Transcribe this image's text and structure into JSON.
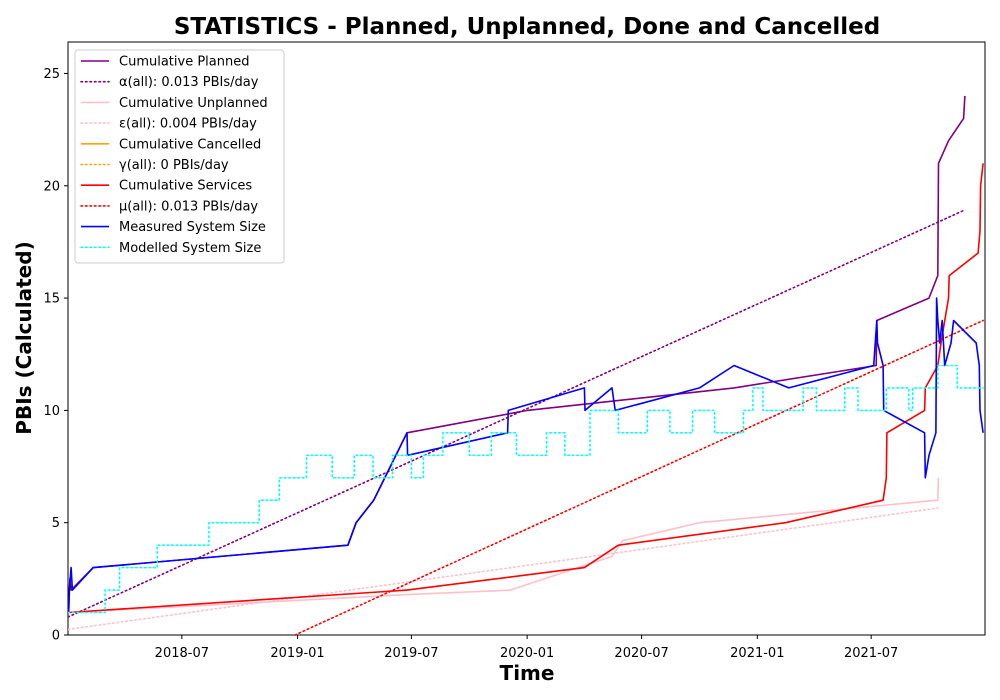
{
  "chart_data": {
    "type": "line",
    "title": "STATISTICS - Planned, Unplanned, Done  and Cancelled",
    "xlabel": "Time",
    "ylabel": "PBIs (Calculated)",
    "x_range": [
      "2018-01-01",
      "2021-12-29"
    ],
    "ylim": [
      0,
      26.4
    ],
    "x_ticks": [
      "2018-07",
      "2019-01",
      "2019-07",
      "2020-01",
      "2020-07",
      "2021-01",
      "2021-07"
    ],
    "y_ticks": [
      0,
      5,
      10,
      15,
      20,
      25
    ],
    "grid": false,
    "legend_position": "upper-left",
    "series": [
      {
        "name": "Cumulative Planned",
        "color": "#800080",
        "style": "solid",
        "points": [
          [
            "2018-01-02",
            1
          ],
          [
            "2018-01-04",
            2.5
          ],
          [
            "2018-01-06",
            2
          ],
          [
            "2018-02-10",
            3
          ],
          [
            "2019-03-22",
            4
          ],
          [
            "2019-04-04",
            5
          ],
          [
            "2019-05-02",
            6
          ],
          [
            "2019-06-24",
            9
          ],
          [
            "2020-01-01",
            10
          ],
          [
            "2020-11-25",
            11
          ],
          [
            "2021-07-09",
            12
          ],
          [
            "2021-07-10",
            14
          ],
          [
            "2021-10-01",
            15
          ],
          [
            "2021-10-15",
            16
          ],
          [
            "2021-10-16",
            21
          ],
          [
            "2021-11-01",
            22
          ],
          [
            "2021-11-25",
            23
          ],
          [
            "2021-11-27",
            24
          ]
        ]
      },
      {
        "name": "α(all): 0.013 PBIs/day",
        "color": "#800080",
        "style": "dotted",
        "points": [
          [
            "2018-01-01",
            0.8
          ],
          [
            "2021-11-25",
            18.9
          ]
        ]
      },
      {
        "name": "Cumulative Unplanned",
        "color": "#ffc0cb",
        "style": "solid",
        "points": [
          [
            "2018-01-02",
            1
          ],
          [
            "2019-06-24",
            1.8
          ],
          [
            "2019-12-05",
            2
          ],
          [
            "2020-05-15",
            3.5
          ],
          [
            "2020-06-01",
            4.2
          ],
          [
            "2020-10-01",
            5
          ],
          [
            "2021-10-15",
            6
          ],
          [
            "2021-10-16",
            7
          ]
        ]
      },
      {
        "name": "ε(all): 0.004 PBIs/day",
        "color": "#ffc0cb",
        "style": "dotted",
        "points": [
          [
            "2018-01-01",
            0.25
          ],
          [
            "2021-10-15",
            5.65
          ]
        ]
      },
      {
        "name": "Cumulative Cancelled",
        "color": "#ffa500",
        "style": "solid",
        "points": []
      },
      {
        "name": "γ(all): 0 PBIs/day",
        "color": "#ffa500",
        "style": "dotted",
        "points": []
      },
      {
        "name": "Cumulative Services",
        "color": "#ff0000",
        "style": "solid",
        "points": [
          [
            "2018-01-02",
            1
          ],
          [
            "2019-06-24",
            2
          ],
          [
            "2020-04-01",
            3
          ],
          [
            "2020-05-25",
            4
          ],
          [
            "2021-02-15",
            5
          ],
          [
            "2021-07-20",
            6
          ],
          [
            "2021-07-25",
            7
          ],
          [
            "2021-07-26",
            9
          ],
          [
            "2021-09-24",
            10
          ],
          [
            "2021-09-25",
            11
          ],
          [
            "2021-10-15",
            12
          ],
          [
            "2021-10-20",
            13
          ],
          [
            "2021-11-01",
            15
          ],
          [
            "2021-11-02",
            16
          ],
          [
            "2021-12-18",
            17
          ],
          [
            "2021-12-21",
            18
          ],
          [
            "2021-12-22",
            20
          ],
          [
            "2021-12-26",
            21
          ]
        ]
      },
      {
        "name": "μ(all): 0.013 PBIs/day",
        "color": "#ff0000",
        "style": "dotted",
        "points": [
          [
            "2018-12-28",
            0
          ],
          [
            "2021-12-26",
            14
          ]
        ]
      },
      {
        "name": "Measured System Size",
        "color": "#0000ff",
        "style": "solid",
        "points": [
          [
            "2018-01-02",
            1
          ],
          [
            "2018-01-03",
            2
          ],
          [
            "2018-01-06",
            3
          ],
          [
            "2018-01-08",
            2
          ],
          [
            "2018-02-10",
            3
          ],
          [
            "2019-03-22",
            4
          ],
          [
            "2019-04-04",
            5
          ],
          [
            "2019-05-02",
            6
          ],
          [
            "2019-06-24",
            9
          ],
          [
            "2019-06-25",
            8
          ],
          [
            "2019-12-01",
            9
          ],
          [
            "2019-12-02",
            10
          ],
          [
            "2020-04-01",
            11
          ],
          [
            "2020-04-02",
            10
          ],
          [
            "2020-05-15",
            11
          ],
          [
            "2020-05-20",
            10
          ],
          [
            "2020-10-01",
            11
          ],
          [
            "2020-11-25",
            12
          ],
          [
            "2021-02-20",
            11
          ],
          [
            "2021-07-05",
            12
          ],
          [
            "2021-07-10",
            14
          ],
          [
            "2021-07-11",
            13
          ],
          [
            "2021-07-20",
            12
          ],
          [
            "2021-07-21",
            10
          ],
          [
            "2021-09-24",
            9
          ],
          [
            "2021-09-25",
            7
          ],
          [
            "2021-10-01",
            8
          ],
          [
            "2021-10-12",
            9
          ],
          [
            "2021-10-13",
            15
          ],
          [
            "2021-10-15",
            14
          ],
          [
            "2021-10-18",
            13
          ],
          [
            "2021-10-22",
            14
          ],
          [
            "2021-10-26",
            12
          ],
          [
            "2021-11-05",
            13
          ],
          [
            "2021-11-09",
            14
          ],
          [
            "2021-12-15",
            13
          ],
          [
            "2021-12-20",
            12
          ],
          [
            "2021-12-21",
            10
          ],
          [
            "2021-12-26",
            9
          ]
        ]
      },
      {
        "name": "Modelled System Size",
        "color": "#00ffff",
        "style": "dotted",
        "points": [
          [
            "2018-01-01",
            1
          ],
          [
            "2018-03-01",
            1
          ],
          [
            "2018-03-01",
            2
          ],
          [
            "2018-03-24",
            2
          ],
          [
            "2018-03-24",
            3
          ],
          [
            "2018-05-23",
            3
          ],
          [
            "2018-05-23",
            4
          ],
          [
            "2018-08-13",
            4
          ],
          [
            "2018-08-13",
            5
          ],
          [
            "2018-11-01",
            5
          ],
          [
            "2018-11-01",
            6
          ],
          [
            "2018-12-03",
            6
          ],
          [
            "2018-12-03",
            7
          ],
          [
            "2019-01-15",
            7
          ],
          [
            "2019-01-15",
            8
          ],
          [
            "2019-02-25",
            8
          ],
          [
            "2019-02-25",
            7
          ],
          [
            "2019-04-01",
            7
          ],
          [
            "2019-04-01",
            8
          ],
          [
            "2019-05-01",
            8
          ],
          [
            "2019-05-01",
            7
          ],
          [
            "2019-06-01",
            7
          ],
          [
            "2019-06-01",
            8
          ],
          [
            "2019-07-01",
            8
          ],
          [
            "2019-07-01",
            7
          ],
          [
            "2019-07-20",
            7
          ],
          [
            "2019-07-20",
            8
          ],
          [
            "2019-08-20",
            8
          ],
          [
            "2019-08-20",
            9
          ],
          [
            "2019-10-01",
            9
          ],
          [
            "2019-10-01",
            8
          ],
          [
            "2019-11-05",
            8
          ],
          [
            "2019-11-05",
            9
          ],
          [
            "2019-12-15",
            9
          ],
          [
            "2019-12-15",
            8
          ],
          [
            "2020-02-01",
            8
          ],
          [
            "2020-02-01",
            9
          ],
          [
            "2020-03-01",
            9
          ],
          [
            "2020-03-01",
            8
          ],
          [
            "2020-04-10",
            8
          ],
          [
            "2020-04-10",
            10
          ],
          [
            "2020-05-25",
            10
          ],
          [
            "2020-05-25",
            9
          ],
          [
            "2020-07-10",
            9
          ],
          [
            "2020-07-10",
            10
          ],
          [
            "2020-08-15",
            10
          ],
          [
            "2020-08-15",
            9
          ],
          [
            "2020-09-20",
            9
          ],
          [
            "2020-09-20",
            10
          ],
          [
            "2020-10-25",
            10
          ],
          [
            "2020-10-25",
            9
          ],
          [
            "2020-12-10",
            9
          ],
          [
            "2020-12-10",
            10
          ],
          [
            "2020-12-25",
            10
          ],
          [
            "2020-12-25",
            11
          ],
          [
            "2021-01-10",
            11
          ],
          [
            "2021-01-10",
            10
          ],
          [
            "2021-03-15",
            10
          ],
          [
            "2021-03-15",
            11
          ],
          [
            "2021-04-05",
            11
          ],
          [
            "2021-04-05",
            10
          ],
          [
            "2021-05-20",
            10
          ],
          [
            "2021-05-20",
            11
          ],
          [
            "2021-06-10",
            11
          ],
          [
            "2021-06-10",
            10
          ],
          [
            "2021-07-25",
            10
          ],
          [
            "2021-07-25",
            11
          ],
          [
            "2021-08-30",
            11
          ],
          [
            "2021-08-30",
            10
          ],
          [
            "2021-09-05",
            10
          ],
          [
            "2021-09-05",
            11
          ],
          [
            "2021-10-15",
            11
          ],
          [
            "2021-10-15",
            12
          ],
          [
            "2021-11-15",
            12
          ],
          [
            "2021-11-15",
            11
          ],
          [
            "2021-12-26",
            11
          ]
        ]
      }
    ]
  }
}
